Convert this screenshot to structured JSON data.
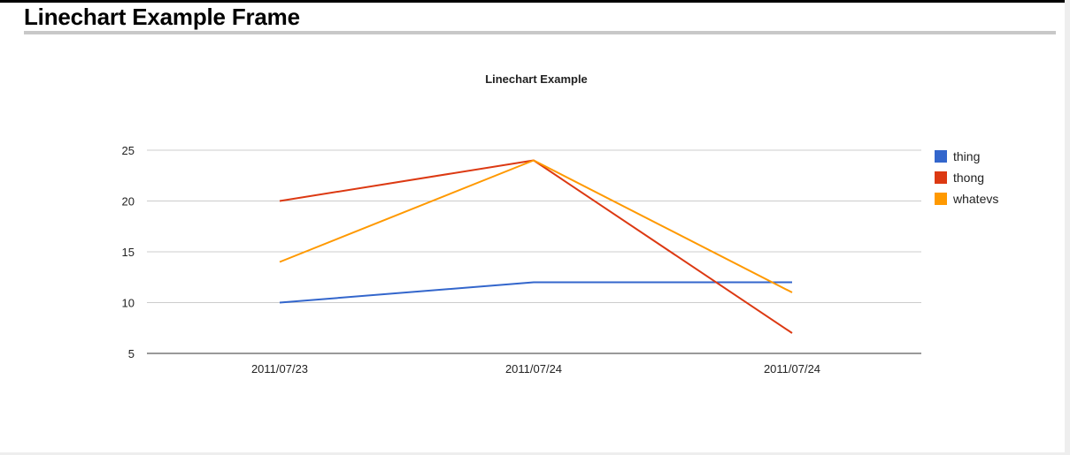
{
  "frame_title": "Linechart Example Frame",
  "chart_data": {
    "type": "line",
    "title": "Linechart Example",
    "xlabel": "",
    "ylabel": "",
    "categories": [
      "2011/07/23",
      "2011/07/24",
      "2011/07/24"
    ],
    "y_ticks": [
      5,
      10,
      15,
      20,
      25
    ],
    "ylim": [
      5,
      25
    ],
    "grid": true,
    "legend_position": "right",
    "series": [
      {
        "name": "thing",
        "color": "#3366cc",
        "values": [
          10,
          12,
          12
        ]
      },
      {
        "name": "thong",
        "color": "#dc3912",
        "values": [
          20,
          24,
          7
        ]
      },
      {
        "name": "whatevs",
        "color": "#ff9900",
        "values": [
          14,
          24,
          11
        ]
      }
    ]
  }
}
